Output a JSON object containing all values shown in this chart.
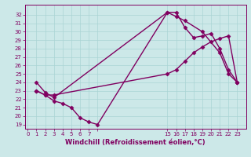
{
  "bg_color": "#cce8e8",
  "line_color": "#800060",
  "line1_x_idx": [
    1,
    2,
    3,
    4,
    5,
    6,
    7,
    8,
    16,
    17,
    18,
    19,
    20,
    21,
    22,
    23,
    24
  ],
  "line1_y": [
    23,
    22.5,
    21.8,
    21.5,
    21.0,
    19.8,
    19.3,
    19.0,
    32.3,
    32.3,
    30.5,
    29.3,
    29.5,
    29.8,
    28.0,
    25.5,
    24.0
  ],
  "line2_x_idx": [
    1,
    2,
    3,
    16,
    17,
    18,
    20,
    22,
    23,
    24
  ],
  "line2_y": [
    24.0,
    22.8,
    22.2,
    32.3,
    31.8,
    31.3,
    30.0,
    27.5,
    25.0,
    24.0
  ],
  "line3_x_idx": [
    1,
    2,
    3,
    16,
    17,
    18,
    19,
    20,
    21,
    22,
    23,
    24
  ],
  "line3_y": [
    23.0,
    22.5,
    22.5,
    25.0,
    25.5,
    26.5,
    27.5,
    28.2,
    28.8,
    29.2,
    29.5,
    24.0
  ],
  "xtick_positions": [
    0,
    1,
    2,
    3,
    4,
    5,
    6,
    7,
    8,
    16,
    17,
    18,
    19,
    20,
    21,
    22,
    23,
    24
  ],
  "xtick_labels": [
    "0",
    "1",
    "2",
    "3",
    "4",
    "5",
    "6",
    "7",
    "",
    "15",
    "16",
    "17",
    "18",
    "19",
    "20",
    "21",
    "22",
    "23"
  ],
  "yticks": [
    19,
    20,
    21,
    22,
    23,
    24,
    25,
    26,
    27,
    28,
    29,
    30,
    31,
    32
  ],
  "ylim": [
    18.5,
    33.2
  ],
  "xlim": [
    -0.3,
    25
  ],
  "xlabel": "Windchill (Refroidissement éolien,°C)",
  "grid_color": "#aad4d4",
  "marker": "D",
  "markersize": 2.5,
  "linewidth": 1.0,
  "tick_fontsize": 5.0,
  "label_fontsize": 6.0
}
